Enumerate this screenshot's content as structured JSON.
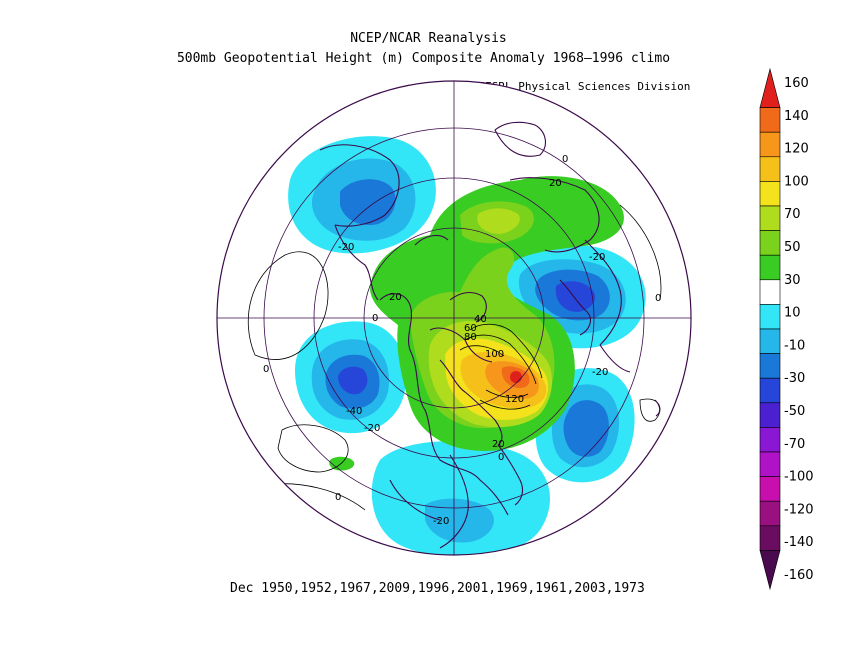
{
  "header": {
    "title_line1": "NCEP/NCAR Reanalysis",
    "title_line2": "500mb Geopotential Height (m) Composite Anomaly 1968–1996 climo",
    "credit": "NOAA/ESRL Physical Sciences Division"
  },
  "caption": "Dec 1950,1952,1967,2009,1996,2001,1969,1961,2003,1973",
  "map": {
    "projection": "polar stereographic (north)",
    "contour_labels": [
      {
        "text": "20"
      },
      {
        "text": "-20"
      },
      {
        "text": "20"
      },
      {
        "text": "0"
      },
      {
        "text": "-20"
      },
      {
        "text": "0"
      },
      {
        "text": "-40"
      },
      {
        "text": "-20"
      },
      {
        "text": "40"
      },
      {
        "text": "60"
      },
      {
        "text": "80"
      },
      {
        "text": "100"
      },
      {
        "text": "120"
      },
      {
        "text": "20"
      },
      {
        "text": "-20"
      },
      {
        "text": "0"
      },
      {
        "text": "-20"
      },
      {
        "text": "0"
      },
      {
        "text": "0"
      },
      {
        "text": "0"
      }
    ],
    "colors": {
      "neg10": "#33e6f7",
      "neg30": "#25b6ea",
      "neg50": "#1a78d8",
      "neg70": "#2546d8",
      "pos10": "#39cc23",
      "pos30": "#7ad21c",
      "pos50": "#b0dc1e",
      "pos70": "#f3e21c",
      "pos100": "#f6c01a",
      "pos120": "#f6961a",
      "pos140": "#f06a1a",
      "pos160": "#e0201c"
    }
  },
  "colorbar": {
    "labels": [
      "160",
      "140",
      "120",
      "100",
      "70",
      "50",
      "30",
      "10",
      "-10",
      "-30",
      "-50",
      "-70",
      "-100",
      "-120",
      "-140",
      "-160"
    ],
    "colors": [
      "#e0201c",
      "#f06a1a",
      "#f6961a",
      "#f6c01a",
      "#f3e21c",
      "#b0dc1e",
      "#7ad21c",
      "#39cc23",
      "#ffffff",
      "#33e6f7",
      "#25b6ea",
      "#1a78d8",
      "#2546d8",
      "#4a20d0",
      "#8a17d3",
      "#b012c8",
      "#c80fae",
      "#9a1080",
      "#6a0c60",
      "#4a0a50"
    ]
  }
}
